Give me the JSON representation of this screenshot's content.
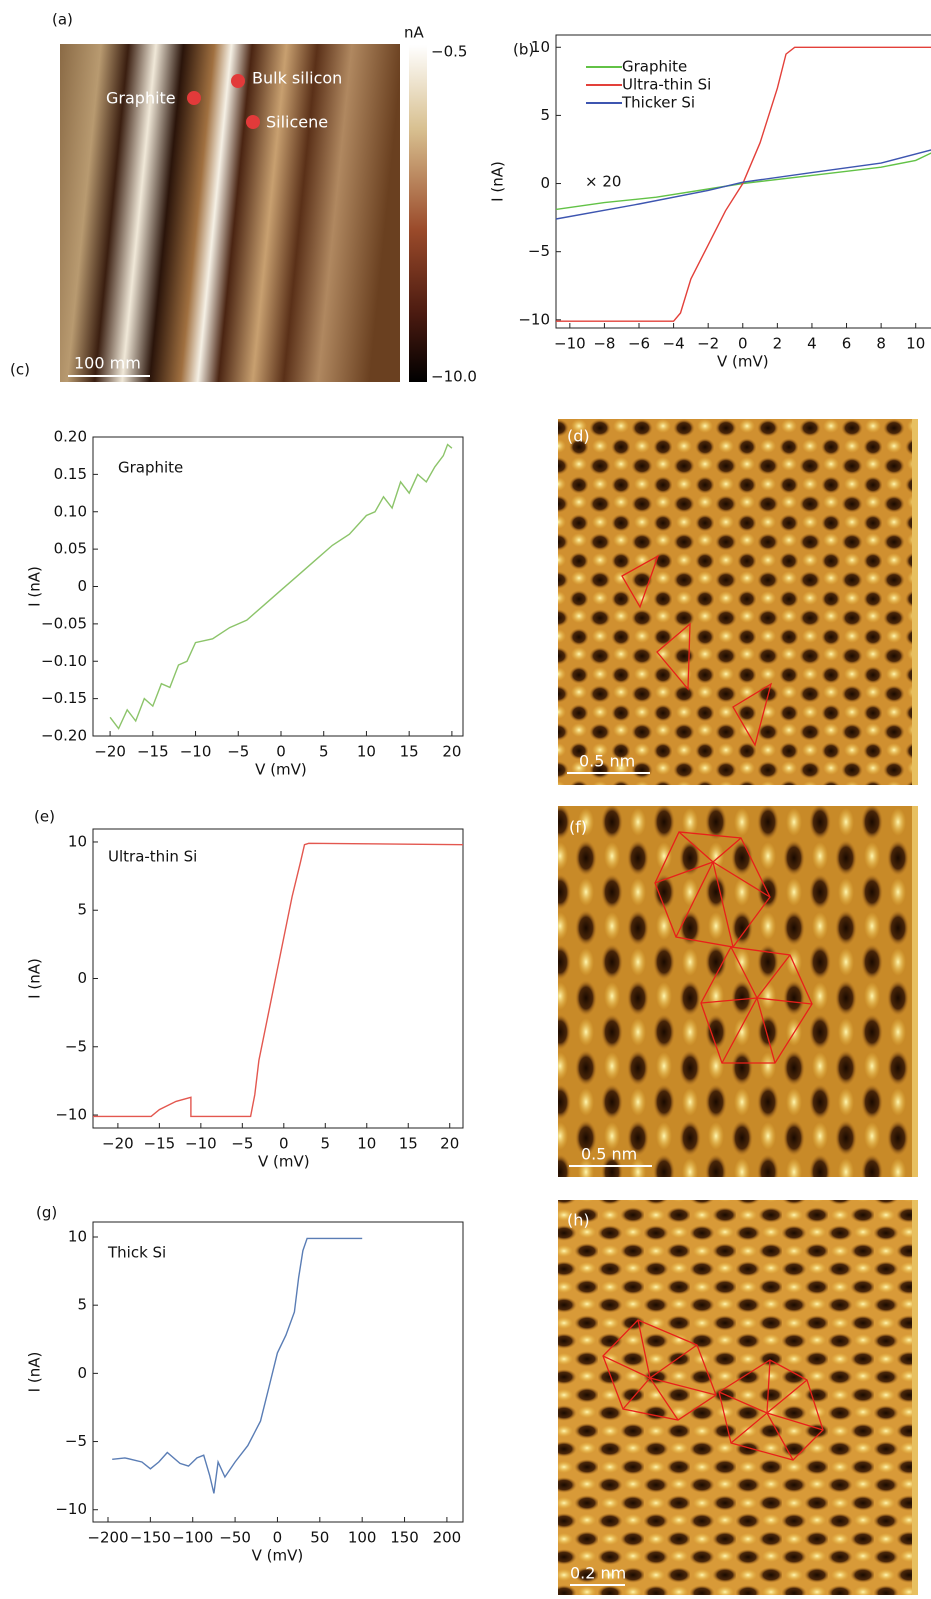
{
  "chart_data": [
    {
      "type": "line",
      "panel": "(b)",
      "xlabel": "V (mV)",
      "ylabel": "I (nA)",
      "annotation": "× 20",
      "xlim": [
        -10.8,
        11
      ],
      "ylim": [
        -10.6,
        10.9
      ],
      "xticks": [
        {
          "value": -10,
          "label": "−10"
        },
        {
          "value": -8,
          "label": "−8"
        },
        {
          "value": -6,
          "label": "−6"
        },
        {
          "value": -4,
          "label": "−4"
        },
        {
          "value": -2,
          "label": "−2"
        },
        0,
        2,
        4,
        6,
        8,
        10
      ],
      "yticks": [
        {
          "value": -10,
          "label": "−10"
        },
        {
          "value": -5,
          "label": "−5"
        },
        0,
        5,
        10
      ],
      "series": [
        {
          "name": "Graphite",
          "color": "#62c246",
          "x": [
            -10.8,
            -8,
            -5,
            -2,
            0,
            4,
            8,
            10,
            11
          ],
          "values": [
            -1.9,
            -1.4,
            -1,
            -0.4,
            0,
            0.6,
            1.2,
            1.7,
            2.3
          ]
        },
        {
          "name": "Ultra-thin Si",
          "color": "#e3403a",
          "x": [
            -10.8,
            -4,
            -3.6,
            -3,
            -2,
            -1,
            0,
            1,
            2,
            2.5,
            3,
            11
          ],
          "values": [
            -10.1,
            -10.1,
            -9.5,
            -7,
            -4.5,
            -2,
            0,
            3,
            7,
            9.5,
            10,
            10
          ]
        },
        {
          "name": "Thicker Si",
          "color": "#3d55b0",
          "x": [
            -10.8,
            -6,
            -2,
            0,
            4,
            8,
            11
          ],
          "values": [
            -2.6,
            -1.5,
            -0.5,
            0.1,
            0.8,
            1.5,
            2.5
          ]
        }
      ]
    },
    {
      "type": "line",
      "panel": "(c)",
      "xlabel": "V (mV)",
      "ylabel": "I (nA)",
      "annotation": "Graphite",
      "xlim": [
        -22,
        21.3
      ],
      "ylim": [
        -0.2,
        0.2
      ],
      "xticks": [
        {
          "value": -20,
          "label": "−20"
        },
        {
          "value": -15,
          "label": "−15"
        },
        {
          "value": -10,
          "label": "−10"
        },
        {
          "value": -5,
          "label": "−5"
        },
        0,
        5,
        10,
        15,
        20
      ],
      "yticks": [
        {
          "value": 0.2,
          "label": "0.20"
        },
        0.15,
        {
          "value": 0.1,
          "label": "0.10"
        },
        0.05,
        0,
        {
          "value": -0.05,
          "label": "−0.05"
        },
        {
          "value": -0.1,
          "label": "−0.10"
        },
        {
          "value": -0.15,
          "label": "−0.15"
        },
        {
          "value": -0.2,
          "label": "−0.20"
        }
      ],
      "series": [
        {
          "name": "Graphite",
          "color": "#8cc46a",
          "x": [
            -20,
            -19,
            -18,
            -17,
            -16,
            -15,
            -14,
            -13,
            -12,
            -11,
            -10,
            -8,
            -6,
            -4,
            -2,
            0,
            2,
            4,
            6,
            8,
            10,
            11,
            12,
            13,
            14,
            15,
            16,
            17,
            18,
            19,
            19.5,
            20
          ],
          "values": [
            -0.175,
            -0.19,
            -0.165,
            -0.18,
            -0.15,
            -0.16,
            -0.13,
            -0.135,
            -0.105,
            -0.1,
            -0.075,
            -0.07,
            -0.055,
            -0.045,
            -0.025,
            -0.005,
            0.015,
            0.035,
            0.055,
            0.07,
            0.095,
            0.1,
            0.12,
            0.105,
            0.14,
            0.125,
            0.15,
            0.14,
            0.16,
            0.175,
            0.19,
            0.185
          ]
        }
      ]
    },
    {
      "type": "line",
      "panel": "(e)",
      "xlabel": "V (mV)",
      "ylabel": "I (nA)",
      "annotation": "Ultra-thin Si",
      "xlim": [
        -23,
        21.6
      ],
      "ylim": [
        -10.95,
        10.95
      ],
      "xticks": [
        {
          "value": -20,
          "label": "−20"
        },
        {
          "value": -15,
          "label": "−15"
        },
        {
          "value": -10,
          "label": "−10"
        },
        {
          "value": -5,
          "label": "−5"
        },
        0,
        5,
        10,
        15,
        20
      ],
      "yticks": [
        {
          "value": -10,
          "label": "−10"
        },
        {
          "value": -5,
          "label": "−5"
        },
        0,
        5,
        10
      ],
      "series": [
        {
          "name": "Ultra-thin Si",
          "color": "#e3574f",
          "x": [
            -23,
            -16,
            -15,
            -13,
            -11.2,
            -11.2,
            -4,
            -3.5,
            -3,
            -2,
            -1,
            0,
            1,
            2,
            2.5,
            3,
            21.6
          ],
          "values": [
            -10.1,
            -10.1,
            -9.6,
            -9,
            -8.7,
            -10.1,
            -10.1,
            -8.5,
            -6,
            -3,
            0,
            3,
            6,
            8.5,
            9.8,
            9.9,
            9.8
          ]
        }
      ]
    },
    {
      "type": "line",
      "panel": "(g)",
      "xlabel": "V (mV)",
      "ylabel": "I (nA)",
      "annotation": "Thick Si",
      "xlim": [
        -217.7,
        219
      ],
      "ylim": [
        -10.9,
        11.1
      ],
      "xticks": [
        {
          "value": -200,
          "label": "−200"
        },
        {
          "value": -150,
          "label": "−150"
        },
        {
          "value": -100,
          "label": "−100"
        },
        {
          "value": -50,
          "label": "−50"
        },
        0,
        50,
        100,
        150,
        200
      ],
      "yticks": [
        {
          "value": -10,
          "label": "−10"
        },
        {
          "value": -5,
          "label": "−5"
        },
        0,
        5,
        10
      ],
      "series": [
        {
          "name": "Thick Si",
          "color": "#5a7db5",
          "x": [
            -195,
            -180,
            -160,
            -150,
            -140,
            -130,
            -115,
            -105,
            -95,
            -87,
            -80,
            -75,
            -70,
            -62,
            -50,
            -35,
            -20,
            -10,
            0,
            10,
            20,
            25,
            30,
            35,
            100
          ],
          "values": [
            -6.3,
            -6.2,
            -6.5,
            -7,
            -6.5,
            -5.8,
            -6.6,
            -6.8,
            -6.2,
            -6,
            -7.5,
            -8.8,
            -6.5,
            -7.6,
            -6.5,
            -5.3,
            -3.5,
            -1,
            1.5,
            2.8,
            4.5,
            7,
            9,
            9.9,
            9.9
          ]
        }
      ]
    }
  ],
  "images": [
    {
      "panel": "(a)",
      "labels": [
        "Graphite",
        "Bulk silicon",
        "Silicene"
      ],
      "scale_bar": "100 mm",
      "colorbar": {
        "unit": "nA",
        "max": "−0.5",
        "min": "−10.0"
      }
    },
    {
      "panel": "(d)",
      "scale_bar": "0.5 nm"
    },
    {
      "panel": "(f)",
      "scale_bar": "0.5 nm"
    },
    {
      "panel": "(h)",
      "scale_bar": "0.2 nm"
    }
  ]
}
